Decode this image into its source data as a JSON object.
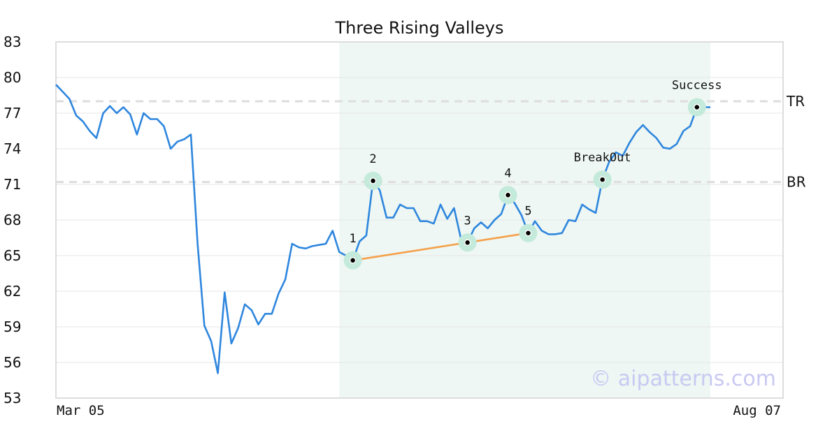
{
  "chart_data": {
    "type": "line",
    "title": "Three Rising Valleys",
    "x_start_label": "Mar 05",
    "x_end_label": "Aug 07",
    "y_ticks": [
      53,
      56,
      59,
      62,
      65,
      68,
      71,
      74,
      77,
      80,
      83
    ],
    "ylim": [
      53,
      83
    ],
    "grid": true,
    "colors": {
      "line": "#2e86de",
      "trend": "#f5a04a",
      "highlight": "#c3eadb",
      "shade": "#eef7f3",
      "reference": "#dddddd"
    },
    "series": [
      {
        "values": [
          79.4,
          78.8,
          78.2,
          76.8,
          76.3,
          75.5,
          74.9,
          77.0,
          77.6,
          77.0,
          77.5,
          76.9,
          75.2,
          77.0,
          76.5,
          76.5,
          75.9,
          74.0,
          74.6,
          74.8,
          75.2,
          66.0,
          59.1,
          57.8,
          55.1,
          61.9,
          57.6,
          58.9,
          60.9,
          60.4,
          59.2,
          60.1,
          60.1,
          61.8,
          63.0,
          66.0,
          65.7,
          65.6,
          65.8,
          65.9,
          66.0,
          67.1,
          65.3,
          65.0,
          64.6,
          66.2,
          66.7,
          71.3,
          70.5,
          68.2,
          68.2,
          69.3,
          69.0,
          69.0,
          67.9,
          67.9,
          67.7,
          69.3,
          68.1,
          69.0,
          66.5,
          66.1,
          67.3,
          67.8,
          67.3,
          68.0,
          68.5,
          70.1,
          69.4,
          68.4,
          66.9,
          67.9,
          67.1,
          66.8,
          66.8,
          66.9,
          68.0,
          67.9,
          69.3,
          68.9,
          68.6,
          71.4,
          72.9,
          73.7,
          73.4,
          74.5,
          75.4,
          76.0,
          75.4,
          74.9,
          74.1,
          74.0,
          74.4,
          75.5,
          75.9,
          77.5,
          77.5,
          77.5
        ]
      }
    ],
    "shaded_region": {
      "from_index": 42,
      "to_index": 97
    },
    "reference_lines": [
      {
        "label": "TR",
        "value": 78.0
      },
      {
        "label": "BR",
        "value": 71.2
      }
    ],
    "trend_line": {
      "from_index": 44,
      "to_index": 70
    },
    "annotations": [
      {
        "label": "1",
        "index": 44,
        "value": 64.6
      },
      {
        "label": "2",
        "index": 47,
        "value": 71.3
      },
      {
        "label": "3",
        "index": 61,
        "value": 66.1
      },
      {
        "label": "4",
        "index": 67,
        "value": 70.1
      },
      {
        "label": "5",
        "index": 70,
        "value": 66.9
      },
      {
        "label": "BreakOut",
        "index": 81,
        "value": 71.4
      },
      {
        "label": "Success",
        "index": 95,
        "value": 77.5
      }
    ],
    "watermark": "© aipatterns.com"
  }
}
